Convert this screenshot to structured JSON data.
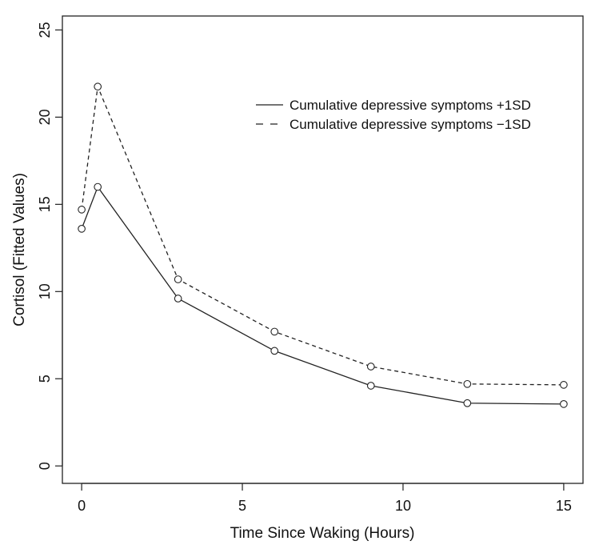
{
  "chart_data": {
    "type": "line",
    "title": "",
    "xlabel": "Time Since Waking (Hours)",
    "ylabel": "Cortisol (Fitted Values)",
    "xlim": [
      -0.6,
      15.6
    ],
    "ylim": [
      -1.0,
      25.8
    ],
    "x_ticks": [
      0,
      5,
      10,
      15
    ],
    "y_ticks": [
      0,
      5,
      10,
      15,
      20,
      25
    ],
    "x_tick_labels": [
      "0",
      "5",
      "10",
      "15"
    ],
    "y_tick_labels": [
      "0",
      "5",
      "10",
      "15",
      "20",
      "25"
    ],
    "grid": false,
    "legend_position": "top-right",
    "x": [
      0,
      0.5,
      3,
      6,
      9,
      12,
      15
    ],
    "series": [
      {
        "name": "Cumulative depressive symptoms +1SD",
        "line_style": "solid",
        "marker": "circle",
        "values": [
          13.6,
          16.0,
          9.6,
          6.6,
          4.6,
          3.6,
          3.55
        ]
      },
      {
        "name": "Cumulative depressive symptoms −1SD",
        "line_style": "dashed",
        "marker": "circle",
        "values": [
          14.7,
          21.75,
          10.7,
          7.7,
          5.7,
          4.7,
          4.65
        ]
      }
    ],
    "colors": {
      "line": "#222222",
      "axis": "#222222",
      "background": "#ffffff"
    }
  }
}
